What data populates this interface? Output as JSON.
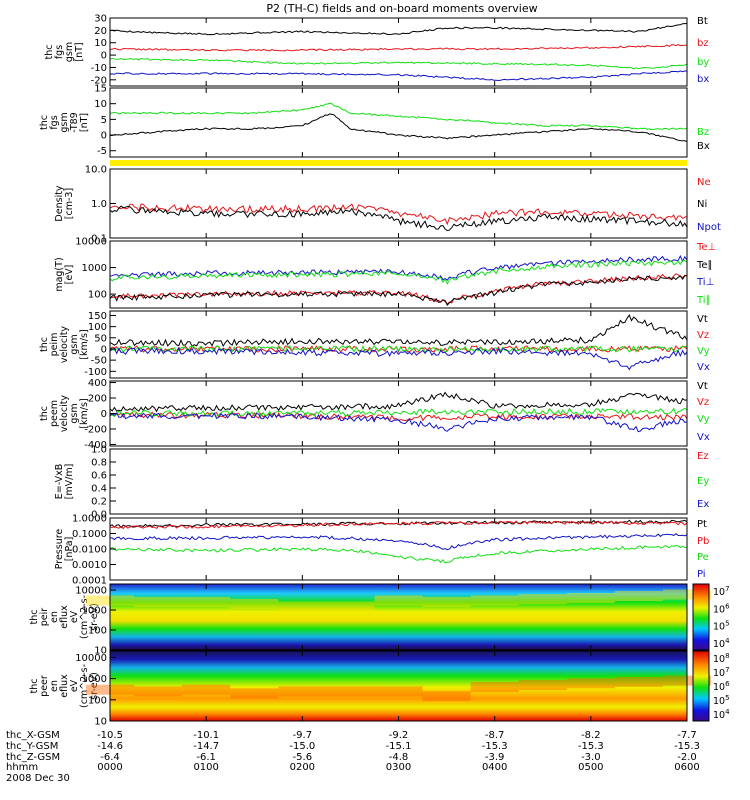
{
  "title": "P2 (TH-C) fields and on-board moments overview",
  "footer": {
    "row_labels": [
      "thc_X-GSM",
      "thc_Y-GSM",
      "thc_Z-GSM",
      "hhmm",
      "2008 Dec 30"
    ],
    "x_gsm": [
      "-10.5",
      "-10.1",
      "-9.7",
      "-9.2",
      "-8.7",
      "-8.2",
      "-7.7"
    ],
    "y_gsm": [
      "-14.6",
      "-14.7",
      "-15.0",
      "-15.1",
      "-15.3",
      "-15.3",
      "-15.3"
    ],
    "z_gsm": [
      "-6.4",
      "-6.1",
      "-5.6",
      "-4.8",
      "-3.9",
      "-3.0",
      "-2.0"
    ],
    "hhmm": [
      "0000",
      "0100",
      "0200",
      "0300",
      "0400",
      "0500",
      "0600"
    ]
  },
  "colors": {
    "black": "#000000",
    "red": "#e8141a",
    "green": "#10e010",
    "blue": "#1212c8",
    "brown": "#8a2d12",
    "yellow": "#ffee00"
  },
  "chart_data": [
    {
      "type": "line",
      "ylabel_lines": [
        "thc",
        "fgs",
        "gsm",
        "[nT]"
      ],
      "ylim": [
        -25,
        30
      ],
      "yticks": [
        30,
        20,
        10,
        0,
        -10,
        -20
      ],
      "legend_placement": "right",
      "series": [
        {
          "name": "Bt",
          "color": "#000000",
          "x": [
            0,
            0.5,
            1,
            1.5,
            2,
            2.5,
            3,
            3.5,
            4,
            4.5,
            5,
            5.5,
            6
          ],
          "values": [
            20,
            18,
            17,
            18,
            19,
            18,
            17,
            22,
            22,
            21,
            20,
            19,
            26
          ]
        },
        {
          "name": "bz",
          "color": "#e8141a",
          "x": [
            0,
            1,
            2,
            3,
            4,
            5,
            6
          ],
          "values": [
            5,
            4,
            4,
            5,
            5,
            6,
            8
          ]
        },
        {
          "name": "by",
          "color": "#10e010",
          "x": [
            0,
            1,
            2,
            3,
            4,
            5,
            5.5,
            6
          ],
          "values": [
            -3,
            -4,
            -7,
            -6,
            -7,
            -8,
            -11,
            -8
          ]
        },
        {
          "name": "bx",
          "color": "#1212c8",
          "x": [
            0,
            1,
            2,
            3,
            4,
            5,
            5.5,
            6
          ],
          "values": [
            -15,
            -15,
            -15,
            -16,
            -20,
            -18,
            -15,
            -13
          ]
        }
      ]
    },
    {
      "type": "line",
      "ylabel_lines": [
        "thc",
        "fgs",
        "gsm",
        "-T89",
        "[nT]"
      ],
      "ylim": [
        -7,
        15
      ],
      "yticks": [
        15,
        10,
        5,
        0,
        -5
      ],
      "legend_placement": "right",
      "series": [
        {
          "name": "Bz",
          "color": "#10e010",
          "x": [
            0,
            0.5,
            1,
            1.5,
            2,
            2.3,
            2.5,
            3,
            3.5,
            4,
            4.5,
            5,
            5.5,
            6
          ],
          "values": [
            7,
            7,
            7,
            7,
            8,
            10,
            7,
            6,
            5,
            4,
            3,
            3,
            2,
            2
          ]
        },
        {
          "name": "Bx",
          "color": "#000000",
          "x": [
            0,
            0.5,
            1,
            1.5,
            2,
            2.3,
            2.5,
            3,
            3.5,
            4,
            4.5,
            5,
            5.5,
            6
          ],
          "values": [
            0,
            1,
            2,
            2,
            3,
            7,
            2,
            0,
            -1,
            0,
            1,
            2,
            1,
            -2
          ]
        }
      ]
    },
    {
      "type": "line",
      "ylabel_lines": [
        "Density",
        "[cm-3]"
      ],
      "yscale": "log",
      "ylim": [
        0.1,
        10
      ],
      "yticks": [
        "10.0",
        "1.0",
        "0.1"
      ],
      "legend_placement": "right",
      "series": [
        {
          "name": "Ne",
          "color": "#e8141a",
          "x": [
            0,
            1,
            2,
            2.5,
            3,
            3.5,
            4,
            4.5,
            5,
            5.5,
            6
          ],
          "values": [
            0.8,
            0.7,
            0.7,
            0.8,
            0.5,
            0.3,
            0.5,
            0.6,
            0.5,
            0.45,
            0.4
          ]
        },
        {
          "name": "Ni",
          "color": "#000000",
          "x": [
            0,
            1,
            2,
            2.5,
            3,
            3.5,
            4,
            4.5,
            5,
            5.5,
            6
          ],
          "values": [
            0.7,
            0.5,
            0.5,
            0.6,
            0.3,
            0.2,
            0.3,
            0.4,
            0.35,
            0.3,
            0.25
          ]
        },
        {
          "name": "Npot",
          "color": "#1212c8",
          "x": [],
          "values": []
        }
      ]
    },
    {
      "type": "line",
      "ylabel_lines": [
        "mag(T)",
        "[eV]"
      ],
      "yscale": "log",
      "ylim": [
        30,
        10000
      ],
      "yticks": [
        "10000",
        "1000",
        "100"
      ],
      "legend_placement": "right",
      "series": [
        {
          "name": "Te⊥",
          "color": "#e8141a",
          "x": [
            0,
            1,
            2,
            3,
            3.5,
            4,
            4.5,
            5,
            5.5,
            6
          ],
          "values": [
            80,
            100,
            110,
            110,
            50,
            120,
            250,
            300,
            400,
            500
          ]
        },
        {
          "name": "Te∥",
          "color": "#000000",
          "x": [
            0,
            1,
            2,
            3,
            3.5,
            4,
            4.5,
            5,
            5.5,
            6
          ],
          "values": [
            70,
            90,
            100,
            100,
            45,
            110,
            230,
            280,
            380,
            450
          ]
        },
        {
          "name": "Ti⊥",
          "color": "#1212c8",
          "x": [
            0,
            1,
            2,
            3,
            3.5,
            4,
            4.5,
            5,
            5.5,
            6
          ],
          "values": [
            500,
            600,
            650,
            700,
            400,
            900,
            1400,
            1800,
            2000,
            2200
          ]
        },
        {
          "name": "Ti∥",
          "color": "#10e010",
          "x": [
            0,
            1,
            2,
            3,
            3.5,
            4,
            4.5,
            5,
            5.5,
            6
          ],
          "values": [
            400,
            500,
            550,
            600,
            300,
            700,
            1100,
            1300,
            1500,
            1500
          ]
        }
      ]
    },
    {
      "type": "line",
      "ylabel_lines": [
        "thc",
        "peim",
        "velocity",
        "gsm",
        "[km/s]"
      ],
      "ylim": [
        -130,
        170
      ],
      "yticks": [
        150,
        100,
        50,
        0,
        -50,
        -100
      ],
      "legend_placement": "right",
      "series": [
        {
          "name": "Vt",
          "color": "#000000",
          "x": [
            0,
            1,
            2,
            3,
            4,
            5,
            5.4,
            6
          ],
          "values": [
            30,
            25,
            35,
            30,
            30,
            40,
            140,
            50
          ]
        },
        {
          "name": "Vz",
          "color": "#e8141a",
          "x": [
            0,
            1,
            2,
            3,
            4,
            5,
            6
          ],
          "values": [
            0,
            0,
            0,
            0,
            0,
            0,
            0
          ]
        },
        {
          "name": "Vy",
          "color": "#10e010",
          "x": [
            0,
            1,
            2,
            3,
            4,
            5,
            6
          ],
          "values": [
            0,
            0,
            0,
            0,
            0,
            0,
            0
          ]
        },
        {
          "name": "Vx",
          "color": "#1212c8",
          "x": [
            0,
            1,
            2,
            3,
            4,
            5,
            5.4,
            6
          ],
          "values": [
            -10,
            -10,
            -15,
            -20,
            -10,
            -20,
            -80,
            -10
          ]
        }
      ]
    },
    {
      "type": "line",
      "ylabel_lines": [
        "thc",
        "peem",
        "velocity",
        "gsm",
        "[km/s]"
      ],
      "ylim": [
        -420,
        420
      ],
      "yticks": [
        400,
        200,
        0,
        -200,
        -400
      ],
      "legend_placement": "right",
      "series": [
        {
          "name": "Vt",
          "color": "#000000",
          "x": [
            0,
            1,
            2,
            3,
            3.5,
            4,
            5,
            5.5,
            6
          ],
          "values": [
            60,
            70,
            80,
            100,
            250,
            100,
            120,
            250,
            150
          ]
        },
        {
          "name": "Vz",
          "color": "#e8141a",
          "x": [
            0,
            1,
            2,
            3,
            4,
            5,
            6
          ],
          "values": [
            -20,
            -20,
            -30,
            -60,
            -40,
            -40,
            -50
          ]
        },
        {
          "name": "Vy",
          "color": "#10e010",
          "x": [
            0,
            1,
            2,
            3,
            4,
            5,
            6
          ],
          "values": [
            0,
            0,
            0,
            20,
            20,
            30,
            30
          ]
        },
        {
          "name": "Vx",
          "color": "#1212c8",
          "x": [
            0,
            1,
            2,
            3,
            3.5,
            4,
            5,
            5.5,
            6
          ],
          "values": [
            -30,
            -30,
            -40,
            -80,
            -200,
            -60,
            -50,
            -200,
            -80
          ]
        }
      ]
    },
    {
      "type": "line",
      "ylabel_lines": [
        "E=-VxB",
        "[mV/m]"
      ],
      "ylim": [
        0,
        1
      ],
      "yticks": [
        "1.0",
        "0.8",
        "0.6",
        "0.4",
        "0.2",
        "0.0"
      ],
      "legend_placement": "right",
      "series": [
        {
          "name": "Ez",
          "color": "#e8141a",
          "x": [],
          "values": []
        },
        {
          "name": "Ey",
          "color": "#10e010",
          "x": [],
          "values": []
        },
        {
          "name": "Ex",
          "color": "#1212c8",
          "x": [],
          "values": []
        }
      ]
    },
    {
      "type": "line",
      "ylabel_lines": [
        "Pressure",
        "[nPa]"
      ],
      "yscale": "log",
      "ylim": [
        0.0001,
        1
      ],
      "yticks": [
        "1.0000",
        "0.1000",
        "0.0100",
        "0.0010",
        "0.0001"
      ],
      "legend_placement": "right",
      "series": [
        {
          "name": "Pt",
          "color": "#000000",
          "x": [
            0,
            1,
            2,
            3,
            4,
            5,
            6
          ],
          "values": [
            0.3,
            0.35,
            0.4,
            0.45,
            0.5,
            0.55,
            0.6
          ]
        },
        {
          "name": "Pb",
          "color": "#e8141a",
          "x": [
            0,
            1,
            2,
            3,
            4,
            5,
            6
          ],
          "values": [
            0.25,
            0.28,
            0.35,
            0.45,
            0.5,
            0.5,
            0.45
          ]
        },
        {
          "name": "Pe",
          "color": "#10e010",
          "x": [
            0,
            1,
            2,
            2.5,
            3,
            3.5,
            4,
            5,
            6
          ],
          "values": [
            0.01,
            0.008,
            0.01,
            0.008,
            0.003,
            0.0015,
            0.005,
            0.01,
            0.015
          ]
        },
        {
          "name": "Pi",
          "color": "#1212c8",
          "x": [
            0,
            1,
            2,
            2.5,
            3,
            3.5,
            4,
            5,
            6
          ],
          "values": [
            0.05,
            0.05,
            0.06,
            0.05,
            0.03,
            0.01,
            0.04,
            0.06,
            0.08
          ]
        }
      ]
    },
    {
      "type": "heatmap",
      "ylabel_lines": [
        "thc",
        "peir",
        "en",
        "eflux",
        "eV",
        "(cm^2-s-",
        "sr-eV)"
      ],
      "yscale": "log",
      "ylim": [
        10,
        20000
      ],
      "yticks": [
        "10000",
        "1000",
        "100",
        "10"
      ],
      "colorbar_ticks": [
        "10^7",
        "10^6",
        "10^5",
        "10^4"
      ],
      "peak_energy_eV": [
        3000,
        2500,
        2500,
        2000,
        1500,
        1500,
        3000,
        2500,
        3000,
        3500,
        4000,
        5000,
        6000
      ]
    },
    {
      "type": "heatmap",
      "ylabel_lines": [
        "thc",
        "peer",
        "en",
        "eflux",
        "eV",
        "(cm^2-s-",
        "sr-eV)"
      ],
      "yscale": "log",
      "ylim": [
        10,
        20000
      ],
      "yticks": [
        "10000",
        "1000",
        "100",
        "10"
      ],
      "colorbar_ticks": [
        "10^8",
        "10^7",
        "10^6",
        "10^5",
        "10^4"
      ],
      "peak_energy_eV": [
        300,
        250,
        300,
        200,
        250,
        250,
        250,
        150,
        400,
        500,
        600,
        700,
        800
      ]
    }
  ]
}
